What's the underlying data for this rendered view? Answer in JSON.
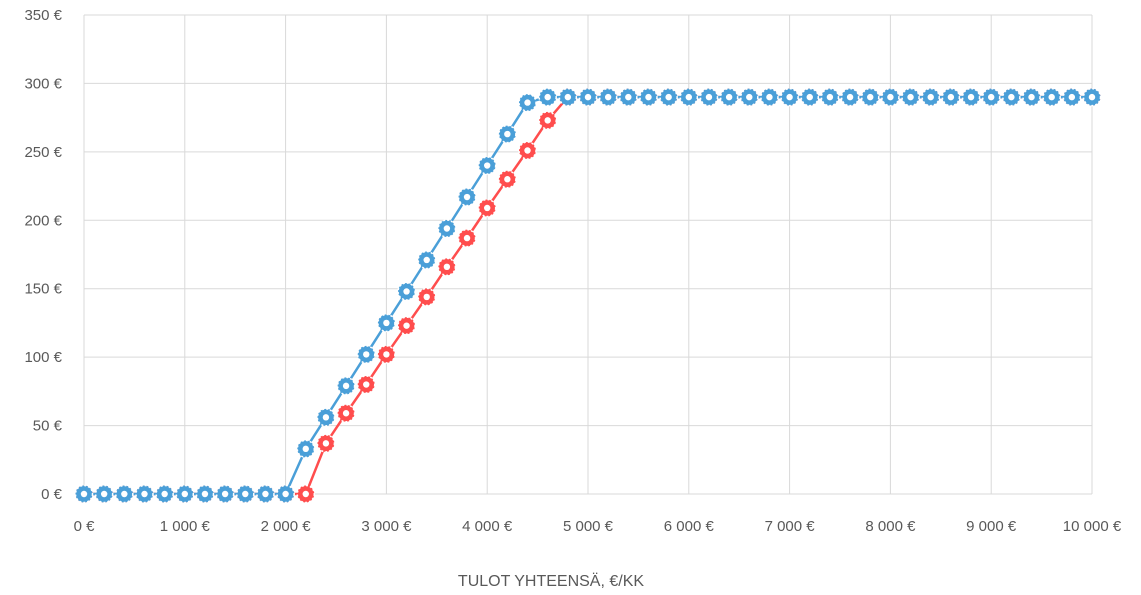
{
  "chart_data": {
    "type": "line",
    "title": "",
    "xlabel": "TULOT YHTEENSÄ, €/KK",
    "ylabel": "",
    "xlim": [
      0,
      10000
    ],
    "ylim": [
      0,
      350
    ],
    "grid": true,
    "legend": "none",
    "x_ticks": [
      0,
      1000,
      2000,
      3000,
      4000,
      5000,
      6000,
      7000,
      8000,
      9000,
      10000
    ],
    "x_tick_labels": [
      "0 €",
      "1 000 €",
      "2 000 €",
      "3 000 €",
      "4 000 €",
      "5 000 €",
      "6 000 €",
      "7 000 €",
      "8 000 €",
      "9 000 €",
      "10 000 €"
    ],
    "y_ticks": [
      0,
      50,
      100,
      150,
      200,
      250,
      300,
      350
    ],
    "y_tick_labels": [
      "0 €",
      "50 €",
      "100 €",
      "150 €",
      "200 €",
      "250 €",
      "300 €",
      "350 €"
    ],
    "x": [
      0,
      200,
      400,
      600,
      800,
      1000,
      1200,
      1400,
      1600,
      1800,
      2000,
      2200,
      2400,
      2600,
      2800,
      3000,
      3200,
      3400,
      3600,
      3800,
      4000,
      4200,
      4400,
      4600,
      4800,
      5000,
      5200,
      5400,
      5600,
      5800,
      6000,
      6200,
      6400,
      6600,
      6800,
      7000,
      7200,
      7400,
      7600,
      7800,
      8000,
      8200,
      8400,
      8600,
      8800,
      9000,
      9200,
      9400,
      9600,
      9800,
      10000
    ],
    "series": [
      {
        "color": "#ff4d4d",
        "values": [
          0,
          0,
          0,
          0,
          0,
          0,
          0,
          0,
          0,
          0,
          0,
          0,
          37,
          59,
          80,
          102,
          123,
          144,
          166,
          187,
          209,
          230,
          251,
          273,
          290,
          290,
          290,
          290,
          290,
          290,
          290,
          290,
          290,
          290,
          290,
          290,
          290,
          290,
          290,
          290,
          290,
          290,
          290,
          290,
          290,
          290,
          290,
          290,
          290,
          290,
          290
        ]
      },
      {
        "color": "#4a9fd8",
        "values": [
          0,
          0,
          0,
          0,
          0,
          0,
          0,
          0,
          0,
          0,
          0,
          33,
          56,
          79,
          102,
          125,
          148,
          171,
          194,
          217,
          240,
          263,
          286,
          290,
          290,
          290,
          290,
          290,
          290,
          290,
          290,
          290,
          290,
          290,
          290,
          290,
          290,
          290,
          290,
          290,
          290,
          290,
          290,
          290,
          290,
          290,
          290,
          290,
          290,
          290,
          290
        ]
      }
    ]
  }
}
